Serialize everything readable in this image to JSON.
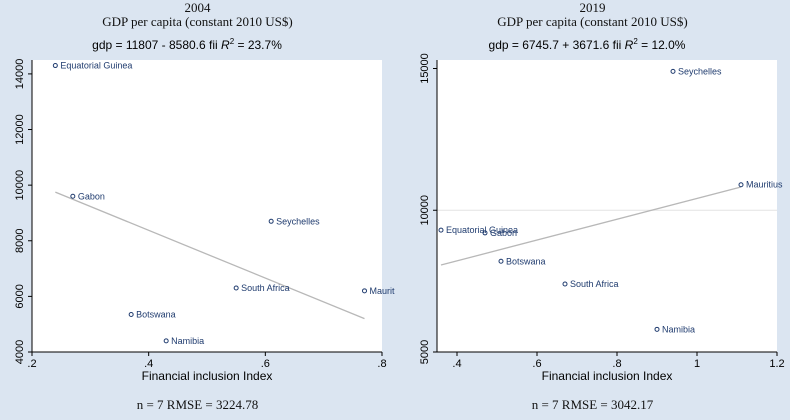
{
  "panels": [
    {
      "year": "2004",
      "title": "GDP per capita (constant 2010 US$)",
      "fit_text": "gdp = 11807 - 8580.6 fii",
      "r2_text": "= 23.7%",
      "xlabel": "Financial inclusion Index",
      "stats": "n = 7      RMSE = 3224.78",
      "chart_data": {
        "type": "scatter",
        "xlim": [
          0.2,
          0.8
        ],
        "ylim": [
          4000,
          14500
        ],
        "xticks": [
          0.2,
          0.4,
          0.6,
          0.8
        ],
        "xtick_labels": [
          ".2",
          ".4",
          ".6",
          ".8"
        ],
        "yticks": [
          4000,
          6000,
          8000,
          10000,
          12000,
          14000
        ],
        "ytick_labels": [
          "4000",
          "6000",
          "8000",
          "10000",
          "12000",
          "14000"
        ],
        "points": [
          {
            "label": "Equatorial Guinea",
            "x": 0.24,
            "y": 14300
          },
          {
            "label": "Gabon",
            "x": 0.27,
            "y": 9600
          },
          {
            "label": "Seychelles",
            "x": 0.61,
            "y": 8700
          },
          {
            "label": "South Africa",
            "x": 0.55,
            "y": 6300
          },
          {
            "label": "Mauriti",
            "x": 0.77,
            "y": 6200
          },
          {
            "label": "Botswana",
            "x": 0.37,
            "y": 5350
          },
          {
            "label": "Namibia",
            "x": 0.43,
            "y": 4400
          }
        ],
        "fit": {
          "intercept": 11807,
          "slope": -8580.6,
          "x_range": [
            0.24,
            0.77
          ]
        },
        "grid": false
      }
    },
    {
      "year": "2019",
      "title": "GDP per capita (constant 2010 US$)",
      "fit_text": "gdp = 6745.7 + 3671.6 fii",
      "r2_text": "= 12.0%",
      "xlabel": "Financial inclusion Index",
      "stats": "n = 7      RMSE = 3042.17",
      "chart_data": {
        "type": "scatter",
        "xlim": [
          0.35,
          1.2
        ],
        "ylim": [
          5000,
          15300
        ],
        "xticks": [
          0.4,
          0.6,
          0.8,
          1.0,
          1.2
        ],
        "xtick_labels": [
          ".4",
          ".6",
          ".8",
          "1",
          "1.2"
        ],
        "yticks": [
          5000,
          10000,
          15000
        ],
        "ytick_labels": [
          "5000",
          "10000",
          "15000"
        ],
        "points": [
          {
            "label": "Seychelles",
            "x": 0.94,
            "y": 14900
          },
          {
            "label": "Mauritius",
            "x": 1.11,
            "y": 10900
          },
          {
            "label": "Equatorial Guinea",
            "x": 0.36,
            "y": 9300
          },
          {
            "label": "Gabon",
            "x": 0.47,
            "y": 9200
          },
          {
            "label": "Botswana",
            "x": 0.51,
            "y": 8200
          },
          {
            "label": "South Africa",
            "x": 0.67,
            "y": 7400
          },
          {
            "label": "Namibia",
            "x": 0.9,
            "y": 5800
          }
        ],
        "fit": {
          "intercept": 6745.7,
          "slope": 3671.6,
          "x_range": [
            0.36,
            1.11
          ]
        },
        "grid": true,
        "gridlines_y": [
          10000
        ]
      }
    }
  ],
  "colors": {
    "page_background": "#dbe5f1",
    "plot_background": "#ffffff",
    "marker": "#1f3b6e",
    "label": "#1f3b6e",
    "fit_line": "#b8b8b8",
    "grid": "#e3e3e3",
    "axis": "#000000"
  }
}
